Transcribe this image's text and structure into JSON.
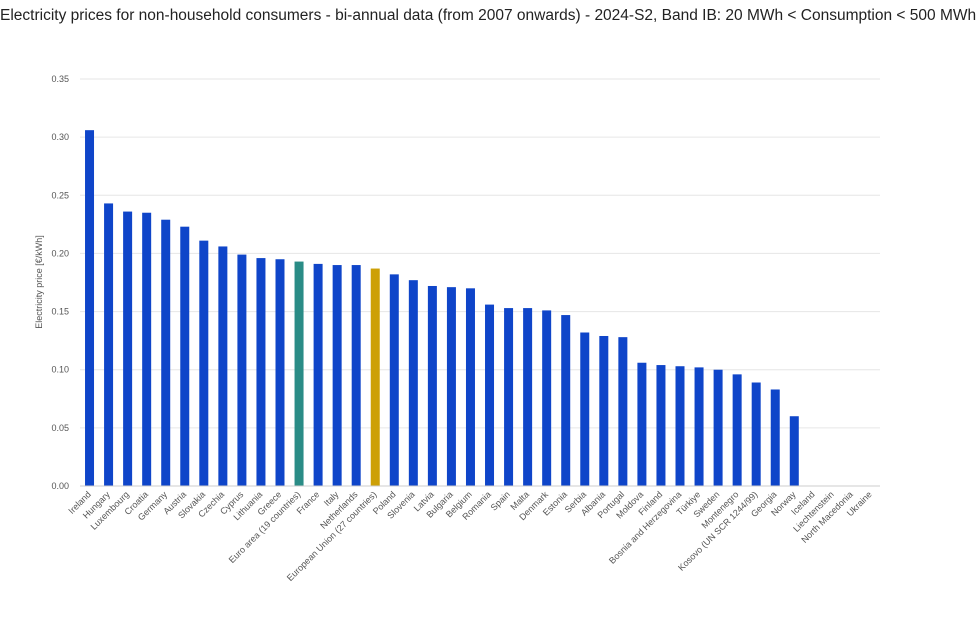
{
  "chart_data": {
    "type": "bar",
    "title": "Electricity prices for non-household consumers - bi-annual data (from 2007 onwards) - 2024-S2, Band IB: 20 MWh < Consumption < 500 MWh",
    "xlabel": "",
    "ylabel": "Electricity price [€/kWh]",
    "ylim": [
      0,
      0.35
    ],
    "yticks": [
      "0.00",
      "0.05",
      "0.10",
      "0.15",
      "0.20",
      "0.25",
      "0.30",
      "0.35"
    ],
    "grid": true,
    "categories": [
      "Ireland",
      "Hungary",
      "Luxembourg",
      "Croatia",
      "Germany",
      "Austria",
      "Slovakia",
      "Czechia",
      "Cyprus",
      "Lithuania",
      "Greece",
      "Euro area (19 countries)",
      "France",
      "Italy",
      "Netherlands",
      "European Union (27 countries)",
      "Poland",
      "Slovenia",
      "Latvia",
      "Bulgaria",
      "Belgium",
      "Romania",
      "Spain",
      "Malta",
      "Denmark",
      "Estonia",
      "Serbia",
      "Albania",
      "Portugal",
      "Moldova",
      "Finland",
      "Bosnia and Herzegovina",
      "Türkiye",
      "Sweden",
      "Montenegro",
      "Kosovo (UN SCR 1244/99)",
      "Georgia",
      "Norway",
      "Iceland",
      "Liechtenstein",
      "North Macedonia",
      "Ukraine"
    ],
    "values": [
      0.306,
      0.243,
      0.236,
      0.235,
      0.229,
      0.223,
      0.211,
      0.206,
      0.199,
      0.196,
      0.195,
      0.193,
      0.191,
      0.19,
      0.19,
      0.187,
      0.182,
      0.177,
      0.172,
      0.171,
      0.17,
      0.156,
      0.153,
      0.153,
      0.151,
      0.147,
      0.132,
      0.129,
      0.128,
      0.106,
      0.104,
      0.103,
      0.102,
      0.1,
      0.096,
      0.089,
      0.083,
      0.06,
      null,
      null,
      null,
      null
    ],
    "colors": {
      "default": "#0f45c9",
      "Euro area (19 countries)": "#2a8c86",
      "European Union (27 countries)": "#cda006",
      "grid": "#e6e6e6",
      "axis": "#cccccc"
    }
  }
}
